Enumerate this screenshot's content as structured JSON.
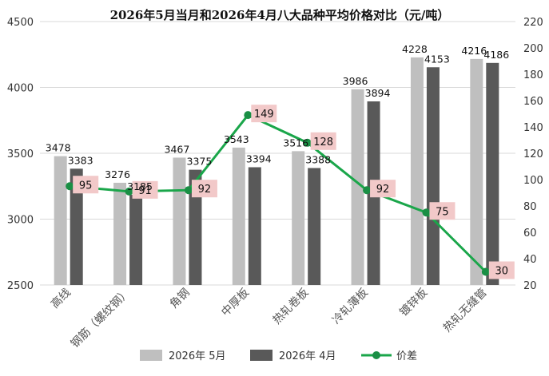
{
  "chart_data": {
    "type": "bar",
    "title": "2026年5月当月和2026年4月八大品种平均价格对比（元/吨）",
    "categories": [
      "高线",
      "钢筋（螺纹钢）",
      "角钢",
      "中厚板",
      "热轧卷板",
      "冷轧薄板",
      "镀锌板",
      "热轧无缝管"
    ],
    "series": [
      {
        "name": "2026年 5月",
        "type": "bar",
        "axis": "left",
        "color": "#bfbfbf",
        "values": [
          3478,
          3276,
          3467,
          3543,
          3516,
          3986,
          4228,
          4216
        ]
      },
      {
        "name": "2026年 4月",
        "type": "bar",
        "axis": "left",
        "color": "#595959",
        "values": [
          3383,
          3185,
          3375,
          3394,
          3388,
          3894,
          4153,
          4186
        ]
      },
      {
        "name": "价差",
        "type": "line",
        "axis": "right",
        "color": "#1aa64a",
        "values": [
          95,
          91,
          92,
          149,
          128,
          92,
          75,
          30
        ]
      }
    ],
    "y_left": {
      "min": 2500,
      "max": 4500,
      "ticks": [
        2500,
        3000,
        3500,
        4000,
        4500
      ]
    },
    "y_right": {
      "min": 20,
      "max": 220,
      "ticks": [
        20,
        40,
        60,
        80,
        100,
        120,
        140,
        160,
        180,
        200,
        220
      ]
    },
    "diff_label_bg": "#f2c9c9",
    "grid": true,
    "legend": "bottom"
  }
}
